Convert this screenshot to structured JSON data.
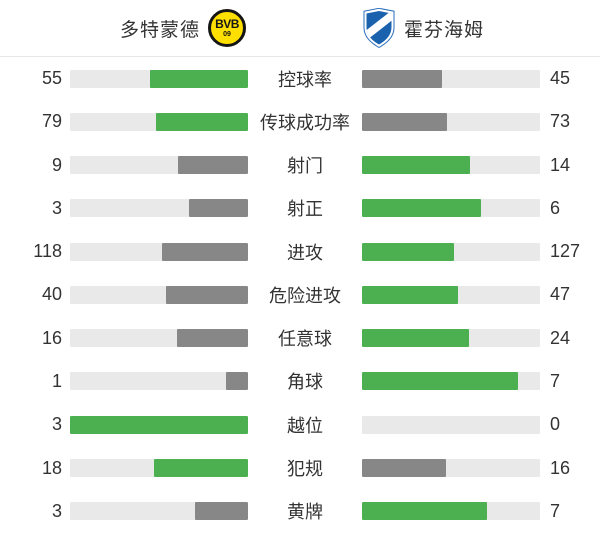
{
  "header": {
    "home": {
      "name": "多特蒙德",
      "badge_text": "BVB",
      "badge_sub": "09"
    },
    "away": {
      "name": "霍芬海姆"
    }
  },
  "colors": {
    "win_bar": "#4caf50",
    "lose_bar": "#878787",
    "track": "#e9e9e9",
    "bvb_yellow": "#ffdf00",
    "hoffenheim_blue": "#1a61ae",
    "text": "#333333",
    "divider": "#e7e7e7"
  },
  "chart_data": {
    "type": "bar",
    "orientation": "horizontal-paired",
    "title": "",
    "legend_position": "top",
    "grid": false,
    "categories": [
      "控球率",
      "传球成功率",
      "射门",
      "射正",
      "进攻",
      "危险进攻",
      "任意球",
      "角球",
      "越位",
      "犯规",
      "黄牌"
    ],
    "series": [
      {
        "name": "多特蒙德",
        "values": [
          55,
          79,
          9,
          3,
          118,
          40,
          16,
          1,
          3,
          18,
          3
        ]
      },
      {
        "name": "霍芬海姆",
        "values": [
          45,
          73,
          14,
          6,
          127,
          47,
          24,
          7,
          0,
          16,
          7
        ]
      }
    ],
    "bar_rule": "fill width = value / (home + away); higher value colored green, lower gray, zero hidden"
  }
}
